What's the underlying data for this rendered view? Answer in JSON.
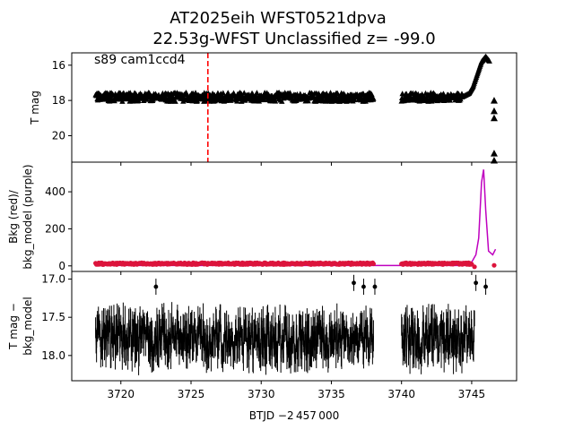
{
  "chart_data": {
    "type": "scatter",
    "title_line1": "AT2025eih  WFST0521dpva",
    "title_line2": "22.53g-WFST Unclassified z= -99.0",
    "xlabel": "BTJD −2 457 000",
    "xlim": [
      3716.5,
      3748.2
    ],
    "xticks": [
      3720,
      3725,
      3730,
      3735,
      3740,
      3745
    ],
    "xtick_labels": [
      "3720",
      "3725",
      "3730",
      "3735",
      "3740",
      "3745"
    ],
    "colors": {
      "points": "#000000",
      "marker_line": "#ff0000",
      "bkg": "#dc143c",
      "bkg_model": "#bf00bf"
    },
    "panels": [
      {
        "name": "tmag",
        "ylabel": "T mag",
        "ylim": [
          21.5,
          15.3
        ],
        "yticks": [
          16,
          18,
          20
        ],
        "ytick_labels": [
          "16",
          "18",
          "20"
        ],
        "annotation": "s89 cam1ccd4",
        "marker_x": 3726.2,
        "segments": [
          {
            "x_start": 3718.2,
            "x_end": 3738.0,
            "y_center": 17.8,
            "y_half_width": 0.25
          },
          {
            "x_start": 3740.0,
            "x_end": 3744.3,
            "y_center": 17.8,
            "y_half_width": 0.25
          }
        ],
        "rise": [
          {
            "x": 3744.3,
            "y": 17.8
          },
          {
            "x": 3744.8,
            "y": 17.6
          },
          {
            "x": 3745.1,
            "y": 17.2
          },
          {
            "x": 3745.4,
            "y": 16.5
          },
          {
            "x": 3745.7,
            "y": 15.8
          },
          {
            "x": 3746.0,
            "y": 15.5
          },
          {
            "x": 3746.3,
            "y": 15.8
          }
        ],
        "late_points": [
          {
            "x": 3746.6,
            "y": 18.0
          },
          {
            "x": 3746.6,
            "y": 18.6
          },
          {
            "x": 3746.6,
            "y": 19.0
          },
          {
            "x": 3746.6,
            "y": 21.0
          },
          {
            "x": 3746.6,
            "y": 21.4
          }
        ]
      },
      {
        "name": "bkg",
        "ylabel_line1": "Bkg (red)/",
        "ylabel_line2": "bkg_model (purple)",
        "ylim": [
          -30,
          560
        ],
        "yticks": [
          0,
          200,
          400
        ],
        "ytick_labels": [
          "0",
          "200",
          "400"
        ],
        "bkg_level": 12,
        "bkg_model_level": 2,
        "gap_start": 3738.0,
        "gap_end": 3740.0,
        "spike": [
          {
            "x": 3745.0,
            "y": 20
          },
          {
            "x": 3745.3,
            "y": 60
          },
          {
            "x": 3745.5,
            "y": 150
          },
          {
            "x": 3745.7,
            "y": 450
          },
          {
            "x": 3745.85,
            "y": 520
          },
          {
            "x": 3746.0,
            "y": 300
          },
          {
            "x": 3746.2,
            "y": 80
          },
          {
            "x": 3746.5,
            "y": 60
          },
          {
            "x": 3746.7,
            "y": 90
          }
        ],
        "bkg_end_points": [
          {
            "x": 3745.2,
            "y": -5
          },
          {
            "x": 3746.6,
            "y": 3
          }
        ]
      },
      {
        "name": "detrended",
        "ylabel_line1": "T mag −",
        "ylabel_line2": "bkg_model",
        "ylim": [
          18.33,
          16.9
        ],
        "yticks": [
          17.0,
          17.5,
          18.0
        ],
        "ytick_labels": [
          "17.0",
          "17.5",
          "18.0"
        ],
        "segments": [
          {
            "x_start": 3718.2,
            "x_end": 3738.0,
            "y_center": 17.78,
            "y_half_width": 0.28
          },
          {
            "x_start": 3740.0,
            "x_end": 3745.2,
            "y_center": 17.78,
            "y_half_width": 0.28
          }
        ],
        "outliers": [
          {
            "x": 3722.5,
            "y": 17.1
          },
          {
            "x": 3736.6,
            "y": 17.05
          },
          {
            "x": 3737.3,
            "y": 17.1
          },
          {
            "x": 3738.1,
            "y": 17.1
          },
          {
            "x": 3745.3,
            "y": 17.05
          },
          {
            "x": 3746.0,
            "y": 17.1
          }
        ]
      }
    ]
  }
}
